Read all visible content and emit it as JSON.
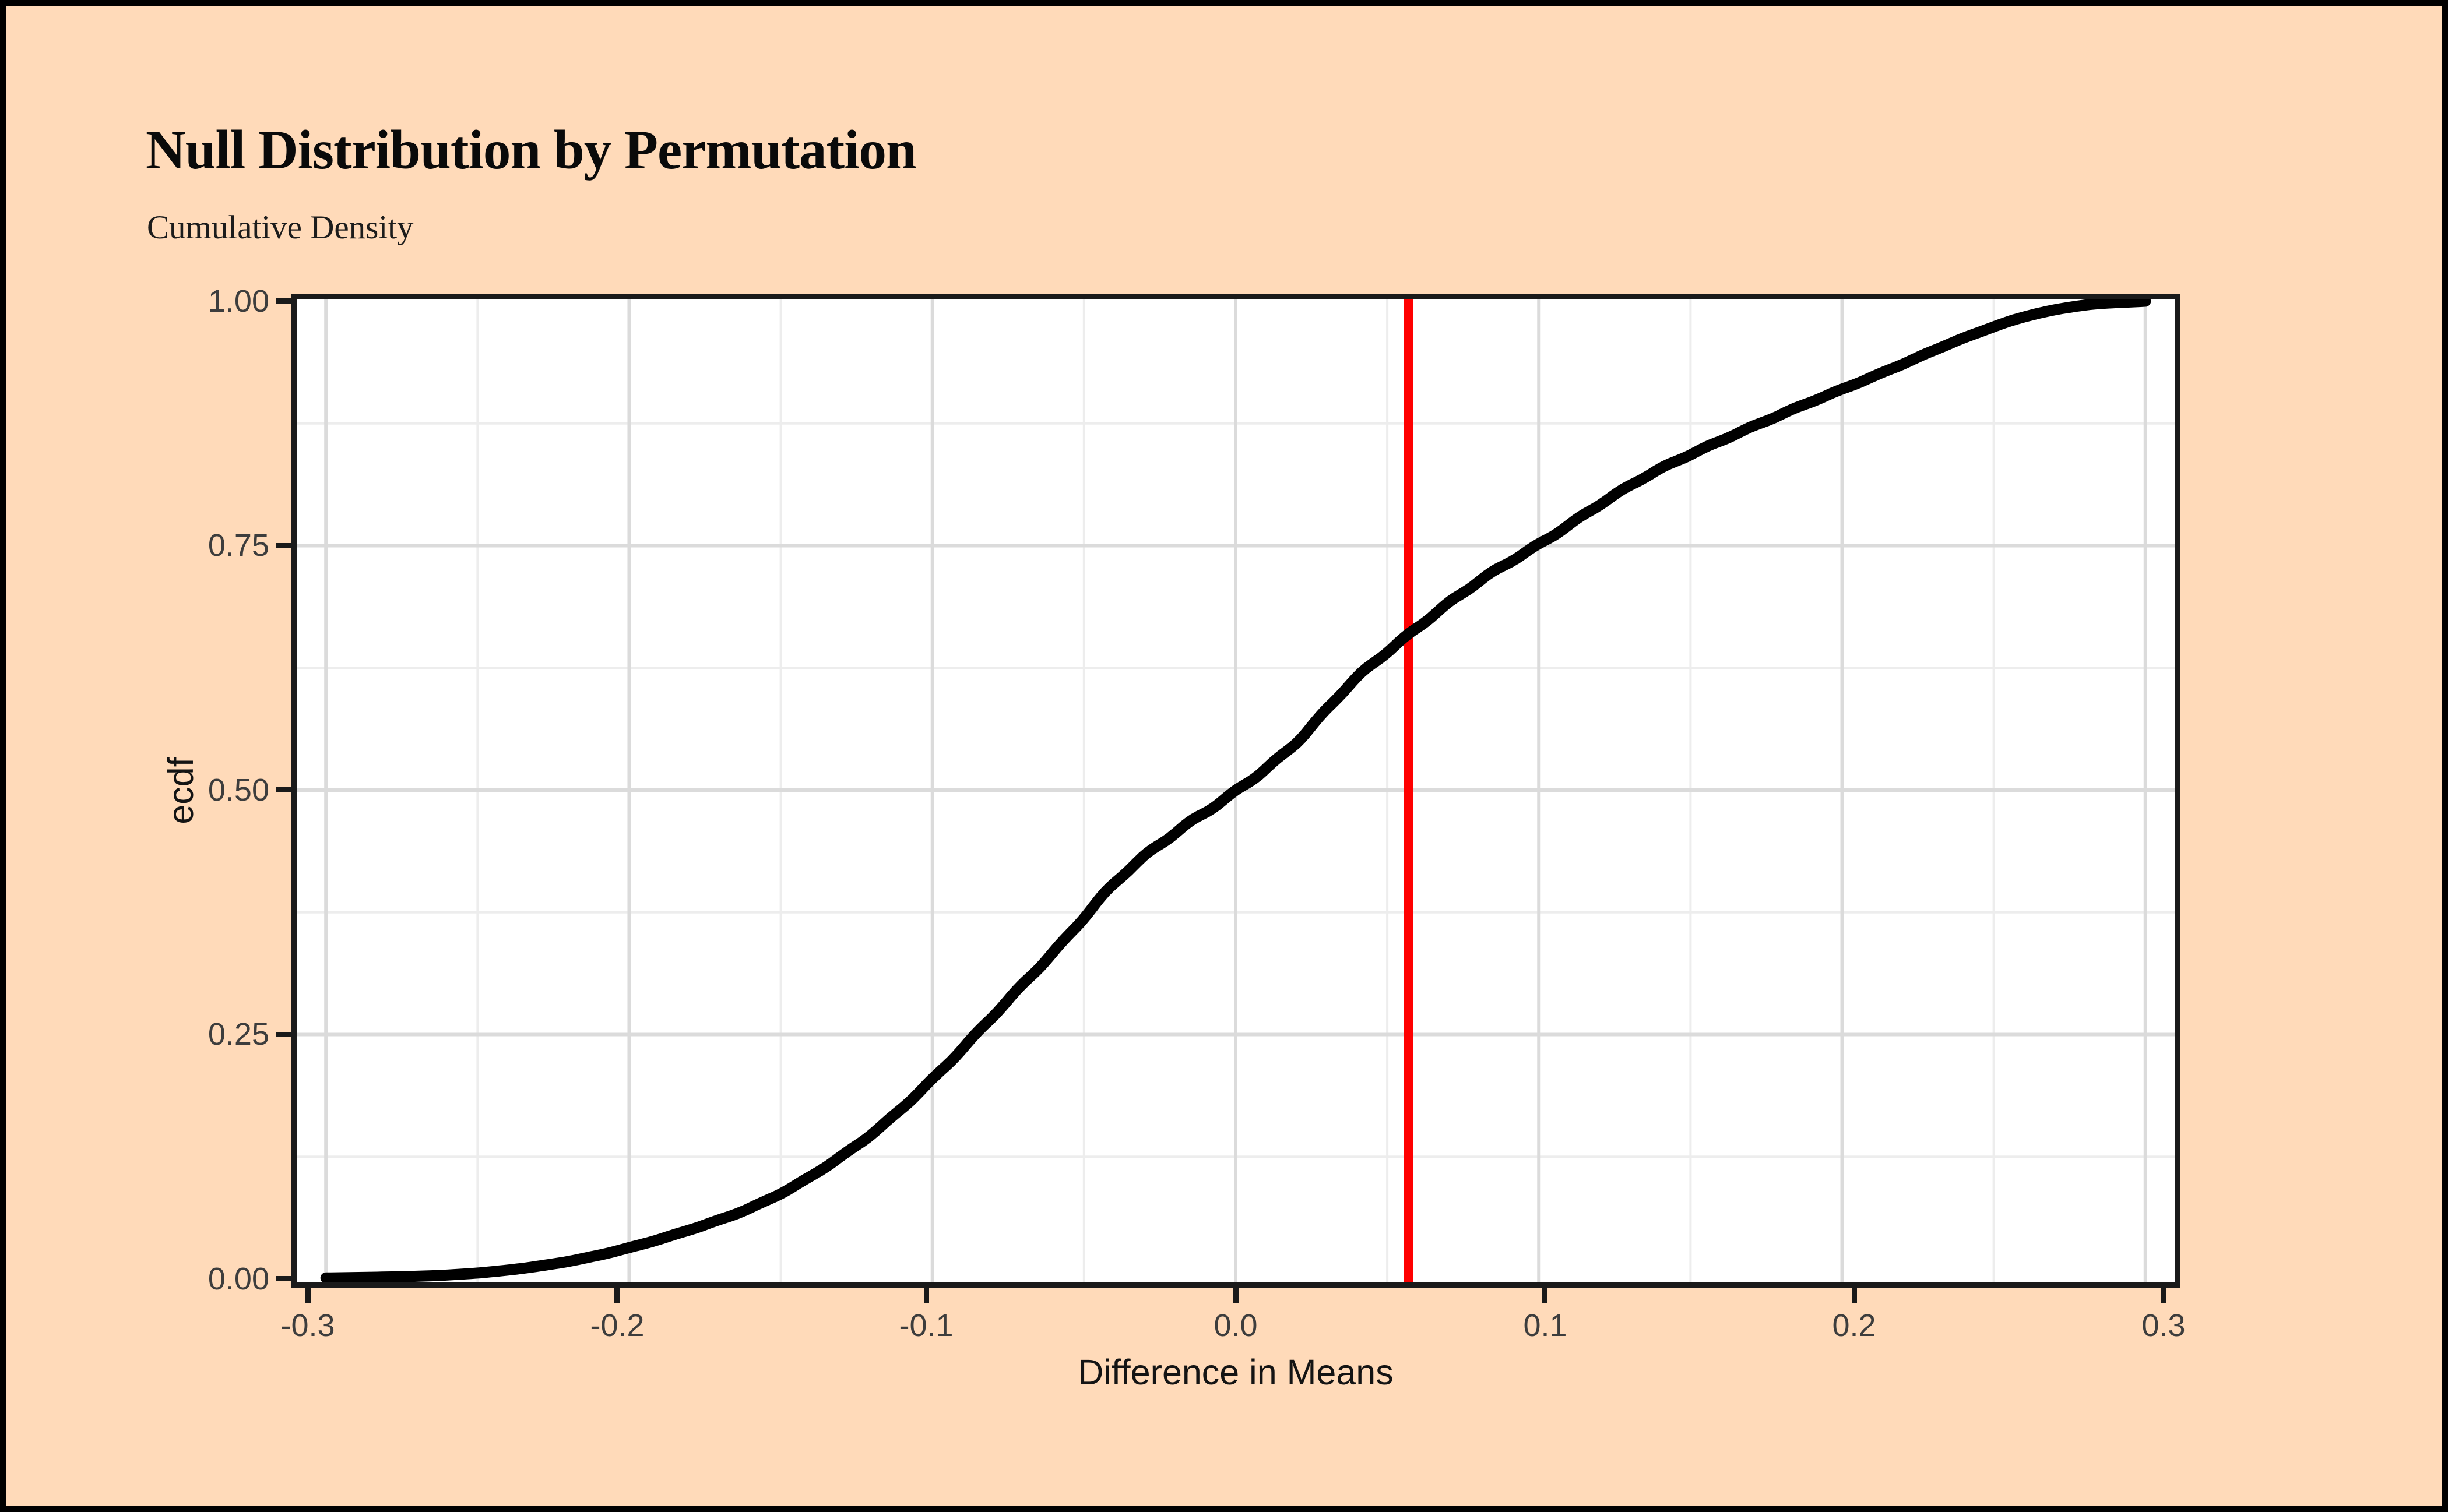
{
  "chart_data": {
    "type": "line",
    "variant": "ecdf",
    "title": "Null Distribution by Permutation",
    "subtitle": "Cumulative Density",
    "xlabel": "Difference in Means",
    "ylabel": "ecdf",
    "xlim": [
      -0.306,
      0.306
    ],
    "ylim": [
      0,
      1
    ],
    "x_ticks": [
      -0.3,
      -0.2,
      -0.1,
      0.0,
      0.1,
      0.2,
      0.3
    ],
    "x_tick_labels": [
      "-0.3",
      "-0.2",
      "-0.1",
      "0.0",
      "0.1",
      "0.2",
      "0.3"
    ],
    "y_ticks": [
      0.0,
      0.25,
      0.5,
      0.75,
      1.0
    ],
    "y_tick_labels": [
      "0.00",
      "0.25",
      "0.50",
      "0.75",
      "1.00"
    ],
    "x_grid_minor": [
      -0.25,
      -0.15,
      -0.05,
      0.05,
      0.15,
      0.25
    ],
    "y_grid_major": [
      0.25,
      0.5,
      0.75
    ],
    "y_grid_minor": [
      0.125,
      0.375,
      0.625,
      0.875
    ],
    "grid": true,
    "legend": "none",
    "vline": {
      "x": 0.057,
      "color": "#FF0000"
    },
    "series": [
      {
        "name": "ecdf",
        "color": "#000000",
        "x": [
          -0.3,
          -0.28,
          -0.26,
          -0.24,
          -0.22,
          -0.2,
          -0.18,
          -0.16,
          -0.14,
          -0.12,
          -0.1,
          -0.08,
          -0.06,
          -0.04,
          -0.02,
          0.0,
          0.02,
          0.04,
          0.057,
          0.08,
          0.1,
          0.12,
          0.14,
          0.16,
          0.18,
          0.2,
          0.22,
          0.24,
          0.26,
          0.28,
          0.3
        ],
        "y": [
          0.001,
          0.002,
          0.004,
          0.009,
          0.018,
          0.032,
          0.05,
          0.073,
          0.105,
          0.148,
          0.205,
          0.268,
          0.335,
          0.405,
          0.455,
          0.5,
          0.548,
          0.615,
          0.66,
          0.712,
          0.752,
          0.792,
          0.828,
          0.858,
          0.884,
          0.91,
          0.936,
          0.962,
          0.984,
          0.996,
          1.0
        ]
      }
    ],
    "colors": {
      "background": "#FFDAB9",
      "panel_background": "#FFFFFF",
      "panel_border": "#1A1A1A",
      "grid_major": "#DBDBDB",
      "grid_minor": "#EDEDED",
      "tick_label": "#3D3D3D",
      "axis_title": "#141414",
      "title": "#0A0A0A",
      "curve": "#000000",
      "vline": "#FF0000"
    }
  }
}
